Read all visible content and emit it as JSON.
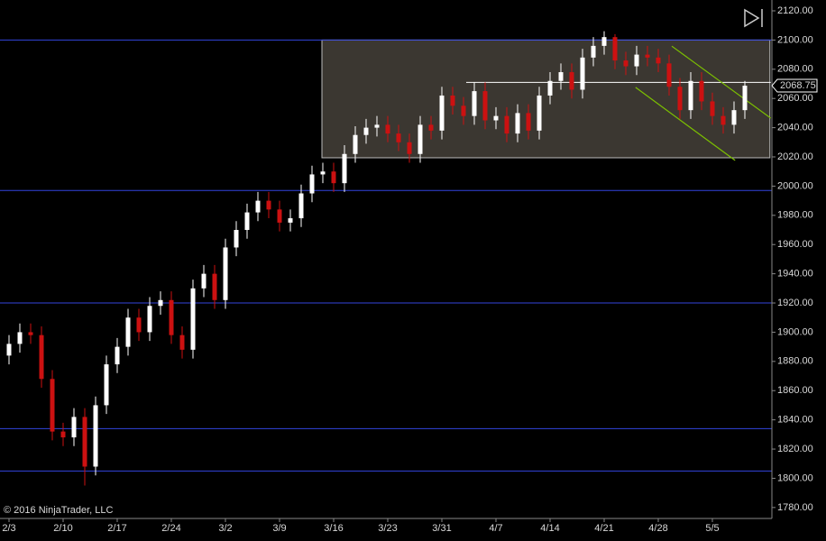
{
  "chart_data": {
    "type": "candlestick",
    "watermark": "© 2016 NinjaTrader, LLC",
    "background": "#000000",
    "up_color": "#ffffff",
    "down_color": "#cc1111",
    "categories": [
      "2/3",
      null,
      null,
      null,
      null,
      "2/10",
      null,
      null,
      null,
      null,
      "2/17",
      null,
      null,
      null,
      null,
      "2/24",
      null,
      null,
      null,
      null,
      "3/2",
      null,
      null,
      null,
      null,
      "3/9",
      null,
      null,
      null,
      null,
      "3/16",
      null,
      null,
      null,
      null,
      "3/23",
      null,
      null,
      null,
      null,
      "3/31",
      null,
      null,
      null,
      null,
      "4/7",
      null,
      null,
      null,
      null,
      "4/14",
      null,
      null,
      null,
      null,
      "4/21",
      null,
      null,
      null,
      null,
      "4/28",
      null,
      null,
      null,
      null,
      "5/5",
      null,
      null,
      null
    ],
    "open": [
      1884,
      1892,
      1900,
      1898,
      1868,
      1832,
      1828,
      1842,
      1808,
      1850,
      1878,
      1890,
      1910,
      1900,
      1918,
      1922,
      1898,
      1888,
      1930,
      1940,
      1922,
      1958,
      1970,
      1982,
      1990,
      1984,
      1975,
      1978,
      1995,
      2008,
      2010,
      2002,
      2022,
      2035,
      2040,
      2042,
      2036,
      2030,
      2022,
      2042,
      2038,
      2062,
      2055,
      2048,
      2065,
      2045,
      2048,
      2036,
      2050,
      2038,
      2062,
      2072,
      2078,
      2066,
      2088,
      2096,
      2102,
      2086,
      2082,
      2090,
      2088,
      2084,
      2068,
      2052,
      2072,
      2058,
      2048,
      2042,
      2052
    ],
    "high": [
      1898,
      1906,
      1906,
      1904,
      1874,
      1838,
      1848,
      1848,
      1856,
      1884,
      1896,
      1916,
      1916,
      1924,
      1928,
      1928,
      1904,
      1936,
      1946,
      1946,
      1964,
      1976,
      1988,
      1996,
      1996,
      1990,
      1984,
      2001,
      2014,
      2016,
      2016,
      2028,
      2041,
      2046,
      2048,
      2048,
      2042,
      2036,
      2048,
      2048,
      2068,
      2068,
      2061,
      2071,
      2071,
      2054,
      2054,
      2056,
      2056,
      2068,
      2078,
      2084,
      2084,
      2094,
      2102,
      2106,
      2104,
      2092,
      2096,
      2096,
      2094,
      2090,
      2074,
      2078,
      2078,
      2064,
      2054,
      2058,
      2072
    ],
    "low": [
      1878,
      1886,
      1892,
      1862,
      1826,
      1822,
      1822,
      1795,
      1802,
      1844,
      1872,
      1884,
      1894,
      1894,
      1912,
      1892,
      1882,
      1882,
      1924,
      1916,
      1916,
      1952,
      1964,
      1976,
      1978,
      1969,
      1969,
      1972,
      1989,
      2002,
      1996,
      1996,
      2016,
      2029,
      2034,
      2030,
      2024,
      2016,
      2016,
      2032,
      2032,
      2049,
      2042,
      2042,
      2039,
      2039,
      2030,
      2030,
      2032,
      2032,
      2056,
      2066,
      2060,
      2060,
      2082,
      2090,
      2080,
      2076,
      2076,
      2082,
      2078,
      2062,
      2046,
      2046,
      2052,
      2042,
      2036,
      2036,
      2046
    ],
    "close": [
      1892,
      1900,
      1898,
      1868,
      1832,
      1828,
      1842,
      1808,
      1850,
      1878,
      1890,
      1910,
      1900,
      1918,
      1922,
      1898,
      1888,
      1930,
      1940,
      1922,
      1958,
      1970,
      1982,
      1990,
      1984,
      1975,
      1978,
      1995,
      2008,
      2010,
      2002,
      2022,
      2035,
      2040,
      2042,
      2036,
      2030,
      2022,
      2042,
      2038,
      2062,
      2055,
      2048,
      2065,
      2045,
      2048,
      2036,
      2050,
      2038,
      2062,
      2072,
      2078,
      2066,
      2088,
      2096,
      2102,
      2086,
      2082,
      2090,
      2088,
      2084,
      2068,
      2052,
      2072,
      2058,
      2048,
      2042,
      2052,
      2068.75
    ],
    "ylim": [
      1772.5,
      2127.4
    ],
    "yticks": [
      {
        "value": 1780,
        "label": "1780.00"
      },
      {
        "value": 1800,
        "label": "1800.00"
      },
      {
        "value": 1820,
        "label": "1820.00"
      },
      {
        "value": 1840,
        "label": "1840.00"
      },
      {
        "value": 1860,
        "label": "1860.00"
      },
      {
        "value": 1880,
        "label": "1880.00"
      },
      {
        "value": 1900,
        "label": "1900.00"
      },
      {
        "value": 1920,
        "label": "1920.00"
      },
      {
        "value": 1940,
        "label": "1940.00"
      },
      {
        "value": 1960,
        "label": "1960.00"
      },
      {
        "value": 1980,
        "label": "1980.00"
      },
      {
        "value": 2000,
        "label": "2000.00"
      },
      {
        "value": 2020,
        "label": "2020.00"
      },
      {
        "value": 2040,
        "label": "2040.00"
      },
      {
        "value": 2060,
        "label": "2060.00"
      },
      {
        "value": 2080,
        "label": "2080.00"
      },
      {
        "value": 2100,
        "label": "2100.00"
      },
      {
        "value": 2120,
        "label": "2120.00"
      }
    ],
    "horizontal_lines": {
      "color": "#3344dd",
      "values": [
        2100,
        1997,
        1920,
        1834,
        1805
      ]
    },
    "zone": {
      "color": "#3b3731",
      "x": [
        29,
        70.4
      ],
      "y": [
        2019.4,
        2100
      ]
    },
    "price_line": {
      "color": "#ffffff",
      "x": [
        42.25,
        70.4
      ],
      "y": 2071
    },
    "channel": {
      "color": "#7cc000",
      "lines": [
        {
          "x": [
            61.25,
            70.4
          ],
          "y": [
            2095.8,
            2046.5
          ]
        },
        {
          "x": [
            57.9,
            67.1
          ],
          "y": [
            2067.6,
            2017.6
          ]
        }
      ]
    }
  }
}
